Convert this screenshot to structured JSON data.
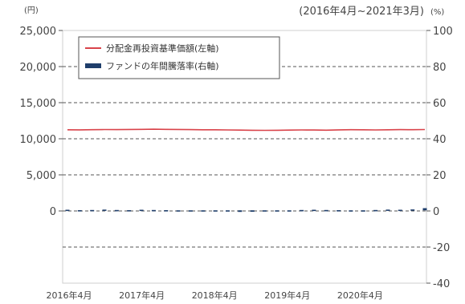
{
  "chart_data": {
    "type": "line",
    "period_label": "(2016年4月~2021年3月)",
    "left_axis": {
      "unit": "(円)",
      "ticks": [
        25000,
        20000,
        15000,
        10000,
        5000,
        0
      ],
      "tick_labels": [
        "25,000",
        "20,000",
        "15,000",
        "10,000",
        "5,000",
        "0"
      ],
      "range": [
        -10000,
        25000
      ]
    },
    "right_axis": {
      "unit": "(%)",
      "ticks": [
        100,
        80,
        60,
        40,
        20,
        0,
        -20,
        -40
      ],
      "tick_labels": [
        "100",
        "80",
        "60",
        "40",
        "20",
        "0",
        "-20",
        "-40"
      ],
      "range": [
        -40,
        100
      ]
    },
    "x_tick_labels": [
      "2016年4月",
      "2017年4月",
      "2018年4月",
      "2019年4月",
      "2020年4月"
    ],
    "grid": "dashed horizontal",
    "legend_position": "top-left",
    "series": [
      {
        "name": "分配金再投資基準価額(左軸)",
        "axis": "left",
        "type": "line",
        "color": "#d9434a",
        "values": [
          11250,
          11230,
          11260,
          11280,
          11270,
          11290,
          11300,
          11320,
          11300,
          11290,
          11270,
          11250,
          11240,
          11220,
          11200,
          11180,
          11170,
          11180,
          11200,
          11220,
          11210,
          11190,
          11230,
          11260,
          11240,
          11220,
          11250,
          11270,
          11260,
          11280
        ]
      },
      {
        "name": "ファンドの年間騰落率(右軸)",
        "axis": "right",
        "type": "bar",
        "color": "#1f3e6b",
        "values": [
          0.3,
          0.1,
          0.2,
          0.4,
          0.2,
          0.1,
          0.3,
          0.2,
          0.1,
          0.0,
          -0.2,
          -0.4,
          -0.5,
          -0.7,
          -0.9,
          -0.8,
          -0.6,
          -0.3,
          0.0,
          0.2,
          0.3,
          0.2,
          0.1,
          -0.3,
          0.0,
          0.2,
          0.4,
          0.3,
          0.5,
          1.2
        ]
      }
    ]
  }
}
